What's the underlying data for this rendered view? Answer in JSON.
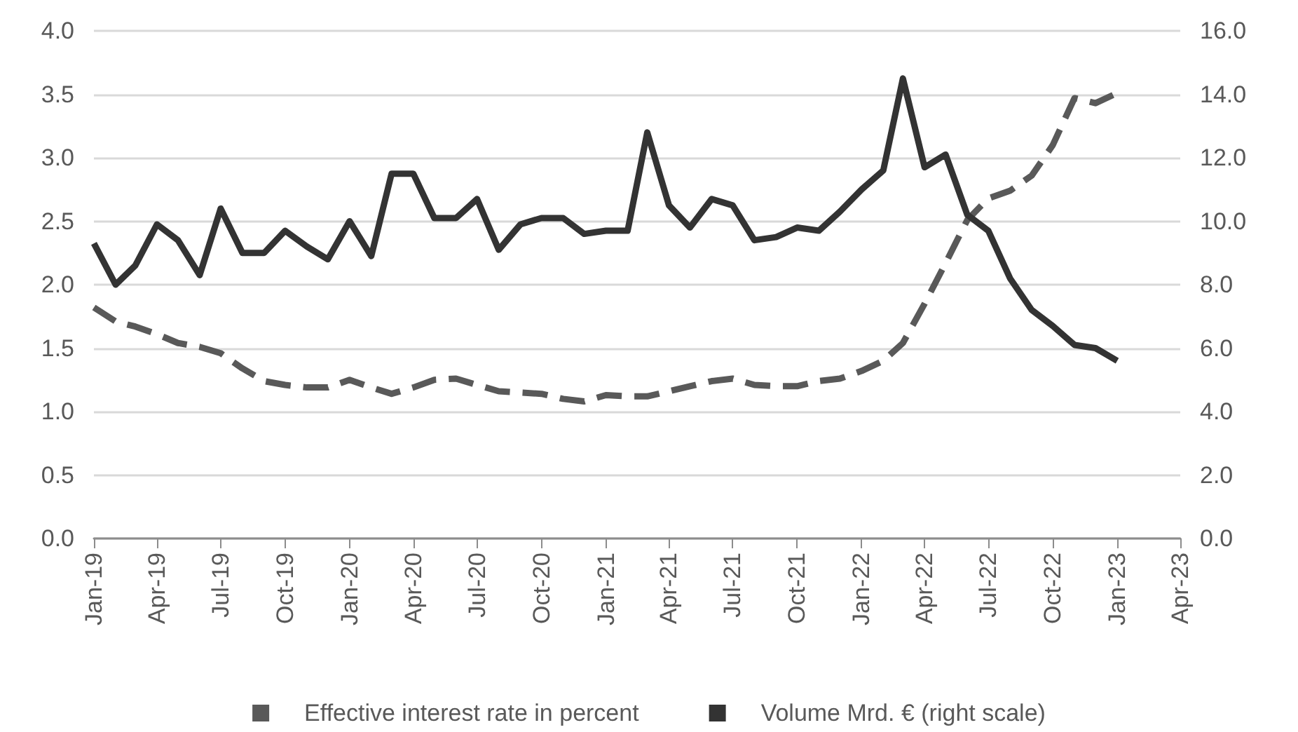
{
  "chart_data": {
    "type": "line",
    "x": [
      "2019-01",
      "2019-02",
      "2019-03",
      "2019-04",
      "2019-05",
      "2019-06",
      "2019-07",
      "2019-08",
      "2019-09",
      "2019-10",
      "2019-11",
      "2019-12",
      "2020-01",
      "2020-02",
      "2020-03",
      "2020-04",
      "2020-05",
      "2020-06",
      "2020-07",
      "2020-08",
      "2020-09",
      "2020-10",
      "2020-11",
      "2020-12",
      "2021-01",
      "2021-02",
      "2021-03",
      "2021-04",
      "2021-05",
      "2021-06",
      "2021-07",
      "2021-08",
      "2021-09",
      "2021-10",
      "2021-11",
      "2021-12",
      "2022-01",
      "2022-02",
      "2022-03",
      "2022-04",
      "2022-05",
      "2022-06",
      "2022-07",
      "2022-08",
      "2022-09",
      "2022-10",
      "2022-11",
      "2022-12",
      "2023-01"
    ],
    "series": [
      {
        "name": "Effective interest rate in percent",
        "color": "#595959",
        "line_style": "dashed",
        "values": [
          1.82,
          1.71,
          1.67,
          1.61,
          1.54,
          1.51,
          1.46,
          1.34,
          1.24,
          1.21,
          1.19,
          1.19,
          1.25,
          1.19,
          1.14,
          1.19,
          1.25,
          1.26,
          1.21,
          1.16,
          1.15,
          1.14,
          1.1,
          1.08,
          1.13,
          1.12,
          1.12,
          1.16,
          1.2,
          1.24,
          1.26,
          1.21,
          1.2,
          1.2,
          1.24,
          1.26,
          1.32,
          1.4,
          1.54,
          1.85,
          2.17,
          2.51,
          2.68,
          2.74,
          2.86,
          3.1,
          3.47,
          3.43,
          3.51
        ]
      },
      {
        "name": "Volume Mrd. € (right scale)",
        "color": "#333333",
        "line_style": "solid",
        "axis": "y2",
        "values": [
          9.3,
          8.0,
          8.6,
          9.9,
          9.4,
          8.3,
          10.4,
          9.0,
          9.0,
          9.7,
          9.2,
          8.8,
          10.0,
          8.9,
          11.5,
          11.5,
          10.1,
          10.1,
          10.7,
          9.1,
          9.9,
          10.1,
          10.1,
          9.6,
          9.7,
          9.7,
          12.8,
          10.5,
          9.8,
          10.7,
          10.5,
          9.4,
          9.5,
          9.8,
          9.7,
          10.3,
          11.0,
          11.6,
          14.5,
          11.7,
          12.1,
          10.2,
          9.7,
          8.2,
          7.2,
          6.7,
          6.1,
          6.0,
          5.6
        ]
      }
    ],
    "xlim": [
      "2019-01",
      "2023-04"
    ],
    "xticks": [
      {
        "value": "2019-01",
        "label": "Jan-19"
      },
      {
        "value": "2019-04",
        "label": "Apr-19"
      },
      {
        "value": "2019-07",
        "label": "Jul-19"
      },
      {
        "value": "2019-10",
        "label": "Oct-19"
      },
      {
        "value": "2020-01",
        "label": "Jan-20"
      },
      {
        "value": "2020-04",
        "label": "Apr-20"
      },
      {
        "value": "2020-07",
        "label": "Jul-20"
      },
      {
        "value": "2020-10",
        "label": "Oct-20"
      },
      {
        "value": "2021-01",
        "label": "Jan-21"
      },
      {
        "value": "2021-04",
        "label": "Apr-21"
      },
      {
        "value": "2021-07",
        "label": "Jul-21"
      },
      {
        "value": "2021-10",
        "label": "Oct-21"
      },
      {
        "value": "2022-01",
        "label": "Jan-22"
      },
      {
        "value": "2022-04",
        "label": "Apr-22"
      },
      {
        "value": "2022-07",
        "label": "Jul-22"
      },
      {
        "value": "2022-10",
        "label": "Oct-22"
      },
      {
        "value": "2023-01",
        "label": "Jan-23"
      },
      {
        "value": "2023-04",
        "label": "Apr-23"
      }
    ],
    "ylim": [
      0,
      4
    ],
    "yticks": [
      {
        "value": 0,
        "label": "0.0"
      },
      {
        "value": 0.5,
        "label": "0.5"
      },
      {
        "value": 1,
        "label": "1.0"
      },
      {
        "value": 1.5,
        "label": "1.5"
      },
      {
        "value": 2,
        "label": "2.0"
      },
      {
        "value": 2.5,
        "label": "2.5"
      },
      {
        "value": 3,
        "label": "3.0"
      },
      {
        "value": 3.5,
        "label": "3.5"
      },
      {
        "value": 4,
        "label": "4.0"
      }
    ],
    "y2lim": [
      0,
      16
    ],
    "y2ticks": [
      {
        "value": 0,
        "label": "0.0"
      },
      {
        "value": 2,
        "label": "2.0"
      },
      {
        "value": 4,
        "label": "4.0"
      },
      {
        "value": 6,
        "label": "6.0"
      },
      {
        "value": 8,
        "label": "8.0"
      },
      {
        "value": 10,
        "label": "10.0"
      },
      {
        "value": 12,
        "label": "12.0"
      },
      {
        "value": 14,
        "label": "14.0"
      },
      {
        "value": 16,
        "label": "16.0"
      }
    ],
    "grid": "y",
    "legend": "bottom",
    "marker": "none"
  }
}
